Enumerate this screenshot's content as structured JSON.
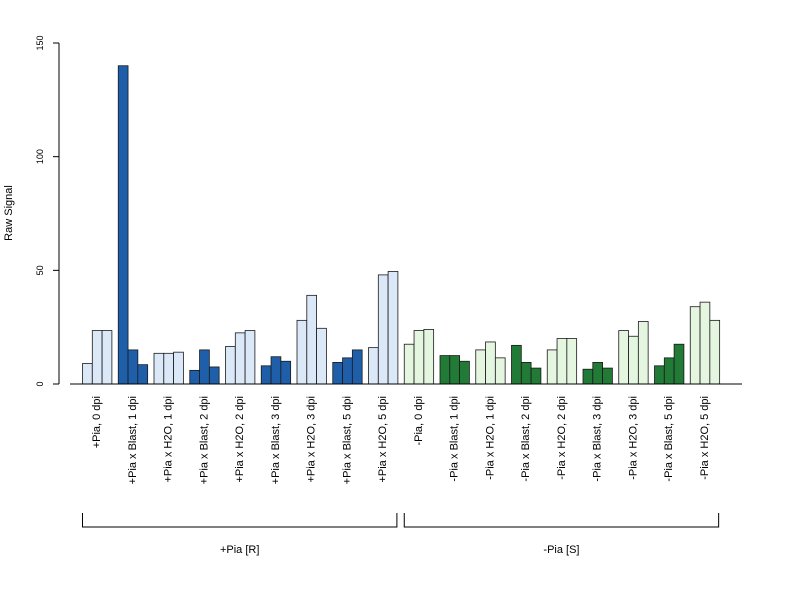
{
  "chart_data": {
    "type": "bar",
    "ylabel": "Raw Signal",
    "ylim": [
      0,
      150
    ],
    "yticks": [
      "0",
      "50",
      "100",
      "150"
    ],
    "xlabel": "",
    "grid": false,
    "legend": "none",
    "groups": [
      {
        "label": "+Pia, 0 dpi",
        "values": [
          9,
          23.5,
          23.5
        ],
        "kind": "water"
      },
      {
        "label": "+Pia x Blast, 1 dpi",
        "values": [
          140,
          15,
          8.5
        ],
        "kind": "blast"
      },
      {
        "label": "+Pia x H2O, 1 dpi",
        "values": [
          13.5,
          13.5,
          14
        ],
        "kind": "water"
      },
      {
        "label": "+Pia x Blast, 2 dpi",
        "values": [
          6,
          15,
          7.5
        ],
        "kind": "blast"
      },
      {
        "label": "+Pia x H2O, 2 dpi",
        "values": [
          16.5,
          22.5,
          23.5
        ],
        "kind": "water"
      },
      {
        "label": "+Pia x Blast, 3 dpi",
        "values": [
          8,
          12,
          10
        ],
        "kind": "blast"
      },
      {
        "label": "+Pia x H2O, 3 dpi",
        "values": [
          28,
          39,
          24.5
        ],
        "kind": "water"
      },
      {
        "label": "+Pia x Blast, 5 dpi",
        "values": [
          9.5,
          11.5,
          15
        ],
        "kind": "blast"
      },
      {
        "label": "+Pia x H2O, 5 dpi",
        "values": [
          16,
          48,
          49.5
        ],
        "kind": "water"
      },
      {
        "label": "-Pia, 0 dpi",
        "values": [
          17.5,
          23.5,
          24
        ],
        "kind": "water"
      },
      {
        "label": "-Pia x Blast, 1 dpi",
        "values": [
          12.5,
          12.5,
          10
        ],
        "kind": "blast"
      },
      {
        "label": "-Pia x H2O, 1 dpi",
        "values": [
          15,
          18.5,
          11.5
        ],
        "kind": "water"
      },
      {
        "label": "-Pia x Blast, 2 dpi",
        "values": [
          17,
          9.5,
          7
        ],
        "kind": "blast"
      },
      {
        "label": "-Pia x H2O, 2 dpi",
        "values": [
          15,
          20,
          20
        ],
        "kind": "water"
      },
      {
        "label": "-Pia x Blast, 3 dpi",
        "values": [
          6.5,
          9.5,
          7
        ],
        "kind": "blast"
      },
      {
        "label": "-Pia x H2O, 3 dpi",
        "values": [
          23.5,
          21,
          27.5
        ],
        "kind": "water"
      },
      {
        "label": "-Pia x Blast, 5 dpi",
        "values": [
          8,
          11.5,
          17.5
        ],
        "kind": "blast"
      },
      {
        "label": "-Pia x H2O, 5 dpi",
        "values": [
          34,
          36,
          28
        ],
        "kind": "water"
      }
    ],
    "sections": [
      {
        "label": "+Pia [R]",
        "from": 0,
        "to": 8,
        "blast_color": "#1f5faa",
        "water_color": "#dbe8f8"
      },
      {
        "label": "-Pia [S]",
        "from": 9,
        "to": 17,
        "blast_color": "#217a35",
        "water_color": "#e4f6df"
      }
    ],
    "border_color": "#1a1a1a"
  }
}
